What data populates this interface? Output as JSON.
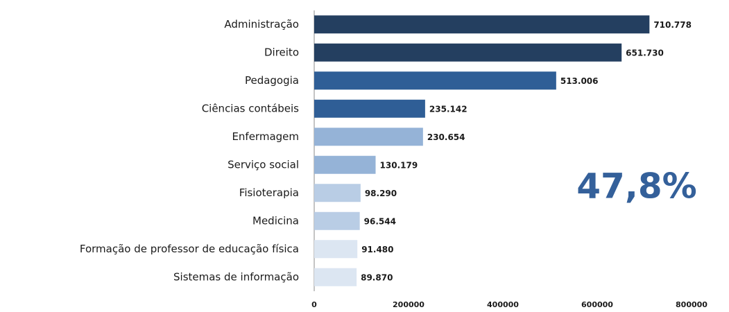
{
  "chart_data": {
    "type": "barh",
    "categories": [
      "Administração",
      "Direito",
      "Pedagogia",
      "Ciências contábeis",
      "Enfermagem",
      "Serviço social",
      "Fisioterapia",
      "Medicina",
      "Formação de professor de educação física",
      "Sistemas de informação"
    ],
    "values": [
      710778,
      651730,
      513006,
      235142,
      230654,
      130179,
      98290,
      96544,
      91480,
      89870
    ],
    "value_labels": [
      "710.778",
      "651.730",
      "513.006",
      "235.142",
      "230.654",
      "130.179",
      "98.290",
      "96.544",
      "91.480",
      "89.870"
    ],
    "colors": [
      "#243f60",
      "#243f60",
      "#2f5e96",
      "#2f5e96",
      "#95b3d7",
      "#95b3d7",
      "#b9cde5",
      "#b9cde5",
      "#dce6f2",
      "#dce6f2"
    ],
    "xlim": [
      0,
      800000
    ],
    "xticks": [
      0,
      200000,
      400000,
      600000,
      800000
    ],
    "annotation": "47,8%"
  }
}
